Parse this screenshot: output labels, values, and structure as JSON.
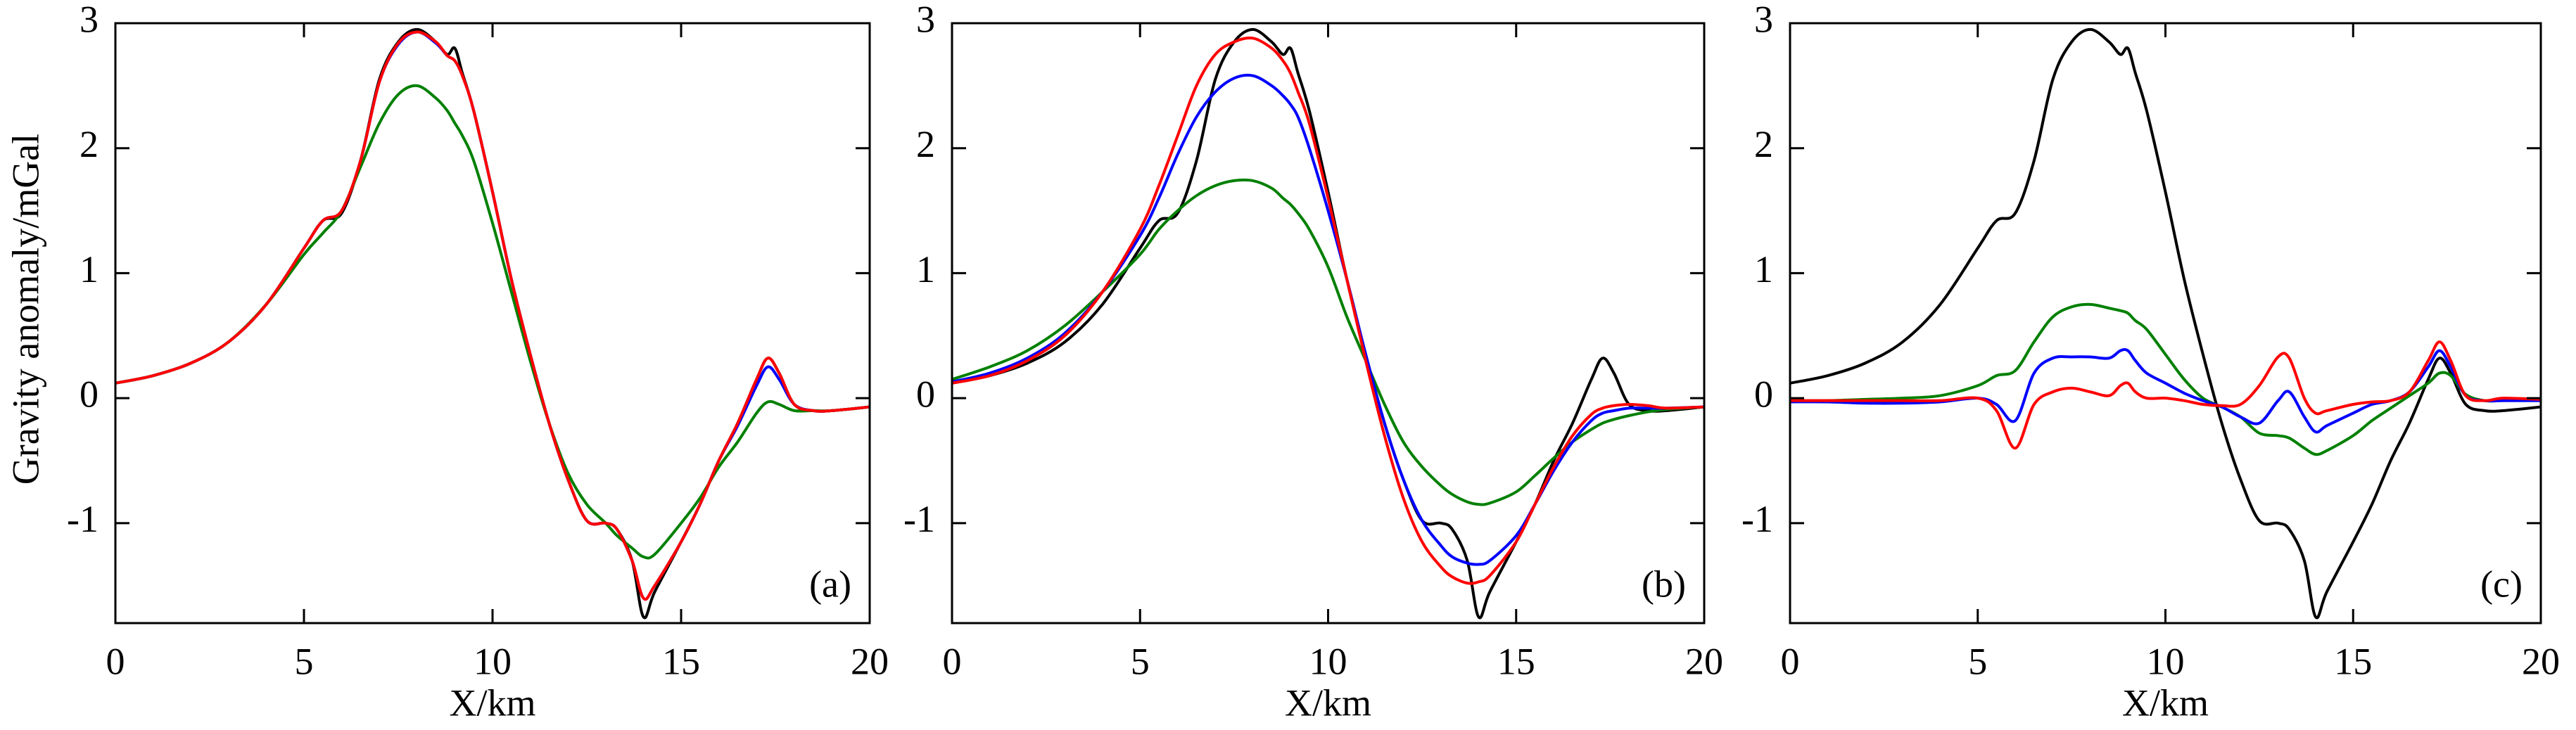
{
  "chart_data": [
    {
      "type": "line",
      "ylabel": "Gravity  anomaly/mGal",
      "xlabel": "X/km",
      "annotation": "(a)",
      "xlim": [
        0,
        20
      ],
      "ylim": [
        -1.8,
        3
      ],
      "xticks": [
        0,
        5,
        10,
        15,
        20
      ],
      "yticks": [
        -1,
        0,
        1,
        2,
        3
      ],
      "x": [
        0,
        1,
        2,
        3,
        4,
        5,
        5.5,
        6,
        6.5,
        7,
        7.5,
        8,
        8.5,
        8.8,
        9,
        9.2,
        9.5,
        10,
        10.5,
        11,
        11.5,
        12,
        12.5,
        13,
        13.3,
        13.7,
        14,
        14.3,
        15,
        15.5,
        16,
        16.5,
        17,
        17.3,
        17.6,
        18,
        18.5,
        19,
        20
      ],
      "series": [
        {
          "color": "#000000",
          "values": [
            0.12,
            0.18,
            0.28,
            0.45,
            0.75,
            1.2,
            1.42,
            1.48,
            1.9,
            2.55,
            2.85,
            2.95,
            2.85,
            2.75,
            2.8,
            2.6,
            2.3,
            1.65,
            0.95,
            0.35,
            -0.2,
            -0.65,
            -0.98,
            -1.0,
            -1.05,
            -1.3,
            -1.75,
            -1.55,
            -1.15,
            -0.85,
            -0.5,
            -0.2,
            0.15,
            0.32,
            0.2,
            -0.05,
            -0.1,
            -0.1,
            -0.07
          ]
        },
        {
          "color": "#0000ff",
          "values": [
            0.12,
            0.18,
            0.28,
            0.45,
            0.75,
            1.2,
            1.42,
            1.5,
            1.9,
            2.53,
            2.83,
            2.93,
            2.84,
            2.74,
            2.7,
            2.58,
            2.3,
            1.65,
            0.95,
            0.35,
            -0.2,
            -0.65,
            -0.98,
            -1.0,
            -1.05,
            -1.3,
            -1.6,
            -1.5,
            -1.15,
            -0.85,
            -0.5,
            -0.22,
            0.1,
            0.25,
            0.15,
            -0.05,
            -0.1,
            -0.1,
            -0.07
          ]
        },
        {
          "color": "#008000",
          "values": [
            0.12,
            0.18,
            0.28,
            0.45,
            0.75,
            1.15,
            1.32,
            1.5,
            1.85,
            2.2,
            2.43,
            2.5,
            2.4,
            2.3,
            2.2,
            2.1,
            1.9,
            1.4,
            0.85,
            0.3,
            -0.2,
            -0.6,
            -0.85,
            -1.0,
            -1.1,
            -1.2,
            -1.27,
            -1.25,
            -1.0,
            -0.8,
            -0.55,
            -0.35,
            -0.12,
            -0.03,
            -0.05,
            -0.1,
            -0.1,
            -0.1,
            -0.07
          ]
        },
        {
          "color": "#ff0000",
          "values": [
            0.12,
            0.18,
            0.28,
            0.45,
            0.75,
            1.2,
            1.42,
            1.5,
            1.9,
            2.53,
            2.84,
            2.93,
            2.85,
            2.74,
            2.7,
            2.58,
            2.3,
            1.65,
            0.95,
            0.35,
            -0.2,
            -0.65,
            -0.98,
            -1.0,
            -1.05,
            -1.3,
            -1.6,
            -1.5,
            -1.15,
            -0.85,
            -0.5,
            -0.2,
            0.15,
            0.32,
            0.2,
            -0.05,
            -0.1,
            -0.1,
            -0.07
          ]
        }
      ]
    },
    {
      "type": "line",
      "xlabel": "X/km",
      "annotation": "(b)",
      "xlim": [
        0,
        20
      ],
      "ylim": [
        -1.8,
        3
      ],
      "xticks": [
        0,
        5,
        10,
        15,
        20
      ],
      "yticks": [
        -1,
        0,
        1,
        2,
        3
      ],
      "x": [
        0,
        1,
        2,
        3,
        4,
        5,
        5.5,
        6,
        6.5,
        7,
        7.5,
        8,
        8.5,
        8.8,
        9,
        9.2,
        9.5,
        10,
        10.5,
        11,
        11.5,
        12,
        12.5,
        13,
        13.3,
        13.7,
        14,
        14.3,
        15,
        15.5,
        16,
        16.5,
        17,
        17.3,
        17.6,
        18,
        18.5,
        19,
        20
      ],
      "series": [
        {
          "color": "#000000",
          "values": [
            0.12,
            0.18,
            0.28,
            0.45,
            0.75,
            1.2,
            1.42,
            1.48,
            1.9,
            2.55,
            2.85,
            2.95,
            2.85,
            2.75,
            2.8,
            2.6,
            2.3,
            1.65,
            0.95,
            0.35,
            -0.2,
            -0.65,
            -0.98,
            -1.0,
            -1.05,
            -1.3,
            -1.75,
            -1.55,
            -1.15,
            -0.85,
            -0.5,
            -0.2,
            0.15,
            0.32,
            0.2,
            -0.05,
            -0.1,
            -0.1,
            -0.07
          ]
        },
        {
          "color": "#008000",
          "values": [
            0.15,
            0.25,
            0.38,
            0.58,
            0.85,
            1.15,
            1.35,
            1.5,
            1.62,
            1.7,
            1.74,
            1.74,
            1.68,
            1.6,
            1.55,
            1.48,
            1.35,
            1.05,
            0.65,
            0.3,
            -0.05,
            -0.35,
            -0.55,
            -0.7,
            -0.77,
            -0.83,
            -0.85,
            -0.84,
            -0.75,
            -0.62,
            -0.48,
            -0.35,
            -0.25,
            -0.2,
            -0.17,
            -0.14,
            -0.11,
            -0.09,
            -0.07
          ]
        },
        {
          "color": "#0000ff",
          "values": [
            0.13,
            0.2,
            0.32,
            0.52,
            0.85,
            1.3,
            1.6,
            1.95,
            2.25,
            2.45,
            2.56,
            2.58,
            2.5,
            2.42,
            2.35,
            2.25,
            2.0,
            1.5,
            0.95,
            0.35,
            -0.2,
            -0.65,
            -0.98,
            -1.18,
            -1.27,
            -1.32,
            -1.33,
            -1.3,
            -1.1,
            -0.85,
            -0.58,
            -0.35,
            -0.18,
            -0.12,
            -0.1,
            -0.08,
            -0.08,
            -0.08,
            -0.07
          ]
        },
        {
          "color": "#ff0000",
          "values": [
            0.12,
            0.18,
            0.3,
            0.5,
            0.85,
            1.35,
            1.7,
            2.1,
            2.5,
            2.75,
            2.85,
            2.88,
            2.8,
            2.7,
            2.6,
            2.45,
            2.2,
            1.6,
            0.95,
            0.3,
            -0.3,
            -0.8,
            -1.15,
            -1.35,
            -1.43,
            -1.48,
            -1.47,
            -1.42,
            -1.15,
            -0.85,
            -0.55,
            -0.3,
            -0.13,
            -0.08,
            -0.06,
            -0.05,
            -0.06,
            -0.08,
            -0.07
          ]
        }
      ]
    },
    {
      "type": "line",
      "xlabel": "X/km",
      "annotation": "(c)",
      "xlim": [
        0,
        20
      ],
      "ylim": [
        -1.8,
        3
      ],
      "xticks": [
        0,
        5,
        10,
        15,
        20
      ],
      "yticks": [
        -1,
        0,
        1,
        2,
        3
      ],
      "x": [
        0,
        1,
        2,
        3,
        4,
        5,
        5.5,
        6,
        6.5,
        7,
        7.5,
        8,
        8.5,
        8.8,
        9,
        9.2,
        9.5,
        10,
        10.5,
        11,
        11.5,
        12,
        12.5,
        13,
        13.3,
        13.7,
        14,
        14.3,
        15,
        15.5,
        16,
        16.5,
        17,
        17.3,
        17.6,
        18,
        18.5,
        19,
        20
      ],
      "series": [
        {
          "color": "#000000",
          "values": [
            0.12,
            0.18,
            0.28,
            0.45,
            0.75,
            1.2,
            1.42,
            1.48,
            1.9,
            2.55,
            2.85,
            2.95,
            2.85,
            2.75,
            2.8,
            2.6,
            2.3,
            1.65,
            0.95,
            0.35,
            -0.2,
            -0.65,
            -0.98,
            -1.0,
            -1.05,
            -1.3,
            -1.75,
            -1.55,
            -1.15,
            -0.85,
            -0.5,
            -0.2,
            0.15,
            0.32,
            0.2,
            -0.05,
            -0.1,
            -0.1,
            -0.07
          ]
        },
        {
          "color": "#008000",
          "values": [
            -0.02,
            -0.02,
            -0.01,
            0.0,
            0.02,
            0.1,
            0.18,
            0.22,
            0.45,
            0.65,
            0.73,
            0.75,
            0.72,
            0.7,
            0.68,
            0.62,
            0.55,
            0.35,
            0.15,
            0.0,
            -0.07,
            -0.15,
            -0.28,
            -0.3,
            -0.32,
            -0.4,
            -0.45,
            -0.42,
            -0.3,
            -0.18,
            -0.08,
            0.02,
            0.12,
            0.2,
            0.18,
            0.03,
            -0.02,
            -0.02,
            -0.02
          ]
        },
        {
          "color": "#0000ff",
          "values": [
            -0.03,
            -0.03,
            -0.04,
            -0.04,
            -0.03,
            0.0,
            -0.05,
            -0.18,
            0.2,
            0.32,
            0.33,
            0.33,
            0.32,
            0.38,
            0.38,
            0.3,
            0.2,
            0.12,
            0.04,
            -0.02,
            -0.07,
            -0.15,
            -0.2,
            -0.02,
            0.05,
            -0.15,
            -0.27,
            -0.22,
            -0.12,
            -0.05,
            -0.02,
            0.05,
            0.25,
            0.38,
            0.25,
            0.02,
            -0.02,
            -0.02,
            -0.02
          ]
        },
        {
          "color": "#ff0000",
          "values": [
            -0.02,
            -0.02,
            -0.02,
            -0.02,
            -0.02,
            0.0,
            -0.1,
            -0.4,
            -0.05,
            0.05,
            0.08,
            0.05,
            0.02,
            0.1,
            0.12,
            0.05,
            0.0,
            0.0,
            -0.02,
            -0.05,
            -0.06,
            -0.05,
            0.1,
            0.33,
            0.32,
            0.0,
            -0.12,
            -0.1,
            -0.05,
            -0.03,
            -0.02,
            0.05,
            0.3,
            0.45,
            0.3,
            0.02,
            -0.02,
            0.0,
            -0.01
          ]
        }
      ]
    }
  ]
}
